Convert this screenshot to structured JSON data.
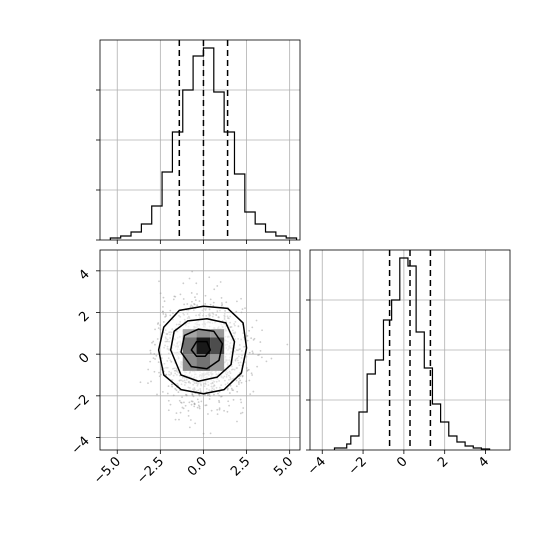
{
  "chart_data": [
    {
      "type": "histogram",
      "panel": "top-left",
      "variable": "x",
      "xlim": [
        -6.0,
        5.6
      ],
      "bin_edges": [
        -5.4,
        -4.8,
        -4.2,
        -3.6,
        -3.0,
        -2.4,
        -1.8,
        -1.2,
        -0.6,
        0.0,
        0.6,
        1.2,
        1.8,
        2.4,
        3.0,
        3.6,
        4.2,
        4.8,
        5.4
      ],
      "counts": [
        0.01,
        0.02,
        0.04,
        0.08,
        0.17,
        0.34,
        0.54,
        0.75,
        0.92,
        0.96,
        0.74,
        0.54,
        0.33,
        0.14,
        0.08,
        0.04,
        0.02,
        0.01
      ],
      "quantile_lines": [
        -1.4,
        0.0,
        1.4
      ],
      "grid": true,
      "tick_labels_visible": false
    },
    {
      "type": "histogram",
      "panel": "bottom-right",
      "variable": "y",
      "xlim": [
        -4.6,
        5.2
      ],
      "xticks": [
        -4,
        -2,
        0,
        2,
        4
      ],
      "xtick_labels": [
        "−4",
        "−2",
        "0",
        "2",
        "4"
      ],
      "bin_edges": [
        -3.4,
        -2.8,
        -2.6,
        -2.2,
        -1.8,
        -1.4,
        -1.0,
        -0.6,
        -0.2,
        0.2,
        0.6,
        1.0,
        1.4,
        1.8,
        2.2,
        2.6,
        3.0,
        3.4,
        3.8,
        4.2
      ],
      "counts": [
        0.01,
        0.03,
        0.07,
        0.19,
        0.38,
        0.45,
        0.65,
        0.75,
        0.96,
        0.92,
        0.59,
        0.41,
        0.23,
        0.14,
        0.07,
        0.04,
        0.02,
        0.01,
        0.005
      ],
      "quantile_lines": [
        -0.7,
        0.3,
        1.3
      ],
      "grid": true
    },
    {
      "type": "2d-density",
      "panel": "bottom-left",
      "variables": [
        "x",
        "y"
      ],
      "xlim": [
        -6.0,
        5.6
      ],
      "ylim": [
        -4.6,
        5.0
      ],
      "xticks": [
        -5.0,
        -2.5,
        0.0,
        2.5,
        5.0
      ],
      "xtick_labels": [
        "−5.0",
        "−2.5",
        "0.0",
        "2.5",
        "5.0"
      ],
      "yticks": [
        -4,
        -2,
        0,
        2,
        4
      ],
      "ytick_labels": [
        "−4",
        "−2",
        "0",
        "2",
        "4"
      ],
      "scatter_extent": {
        "x": [
          -5.2,
          5.0
        ],
        "y": [
          -4.0,
          4.6
        ]
      },
      "density_cells": [
        {
          "x0": -1.2,
          "x1": -0.4,
          "y0": -0.8,
          "y1": 0.0,
          "v": 0.45
        },
        {
          "x0": -0.4,
          "x1": 0.4,
          "y0": -0.8,
          "y1": 0.0,
          "v": 0.55
        },
        {
          "x0": 0.4,
          "x1": 1.2,
          "y0": -0.8,
          "y1": 0.0,
          "v": 0.4
        },
        {
          "x0": -1.2,
          "x1": -0.4,
          "y0": 0.0,
          "y1": 0.8,
          "v": 0.55
        },
        {
          "x0": -0.4,
          "x1": 0.4,
          "y0": 0.0,
          "y1": 0.8,
          "v": 0.9
        },
        {
          "x0": 0.4,
          "x1": 1.2,
          "y0": 0.0,
          "y1": 0.8,
          "v": 0.7
        },
        {
          "x0": -1.2,
          "x1": -0.4,
          "y0": 0.8,
          "y1": 1.2,
          "v": 0.35
        },
        {
          "x0": -0.4,
          "x1": 0.4,
          "y0": 0.8,
          "y1": 1.2,
          "v": 0.45
        },
        {
          "x0": 0.4,
          "x1": 1.2,
          "y0": 0.8,
          "y1": 1.2,
          "v": 0.4
        }
      ],
      "contours": [
        [
          [
            -2.6,
            0.2
          ],
          [
            -2.3,
            1.3
          ],
          [
            -1.4,
            2.1
          ],
          [
            0.0,
            2.3
          ],
          [
            1.4,
            2.2
          ],
          [
            2.3,
            1.5
          ],
          [
            2.5,
            0.3
          ],
          [
            2.2,
            -0.9
          ],
          [
            1.2,
            -1.7
          ],
          [
            0.0,
            -1.9
          ],
          [
            -1.3,
            -1.7
          ],
          [
            -2.3,
            -1.0
          ]
        ],
        [
          [
            -1.9,
            0.2
          ],
          [
            -1.7,
            1.1
          ],
          [
            -0.9,
            1.6
          ],
          [
            0.2,
            1.7
          ],
          [
            1.3,
            1.5
          ],
          [
            1.8,
            0.6
          ],
          [
            1.6,
            -0.5
          ],
          [
            0.8,
            -1.1
          ],
          [
            -0.3,
            -1.3
          ],
          [
            -1.3,
            -1.0
          ]
        ],
        [
          [
            -1.3,
            0.1
          ],
          [
            -1.1,
            0.9
          ],
          [
            -0.3,
            1.2
          ],
          [
            0.6,
            1.1
          ],
          [
            1.1,
            0.5
          ],
          [
            0.9,
            -0.3
          ],
          [
            0.2,
            -0.7
          ],
          [
            -0.7,
            -0.6
          ]
        ],
        [
          [
            -0.7,
            0.2
          ],
          [
            -0.4,
            0.6
          ],
          [
            0.2,
            0.6
          ],
          [
            0.4,
            0.2
          ],
          [
            0.1,
            -0.1
          ],
          [
            -0.4,
            -0.1
          ]
        ]
      ],
      "grid": true
    }
  ]
}
